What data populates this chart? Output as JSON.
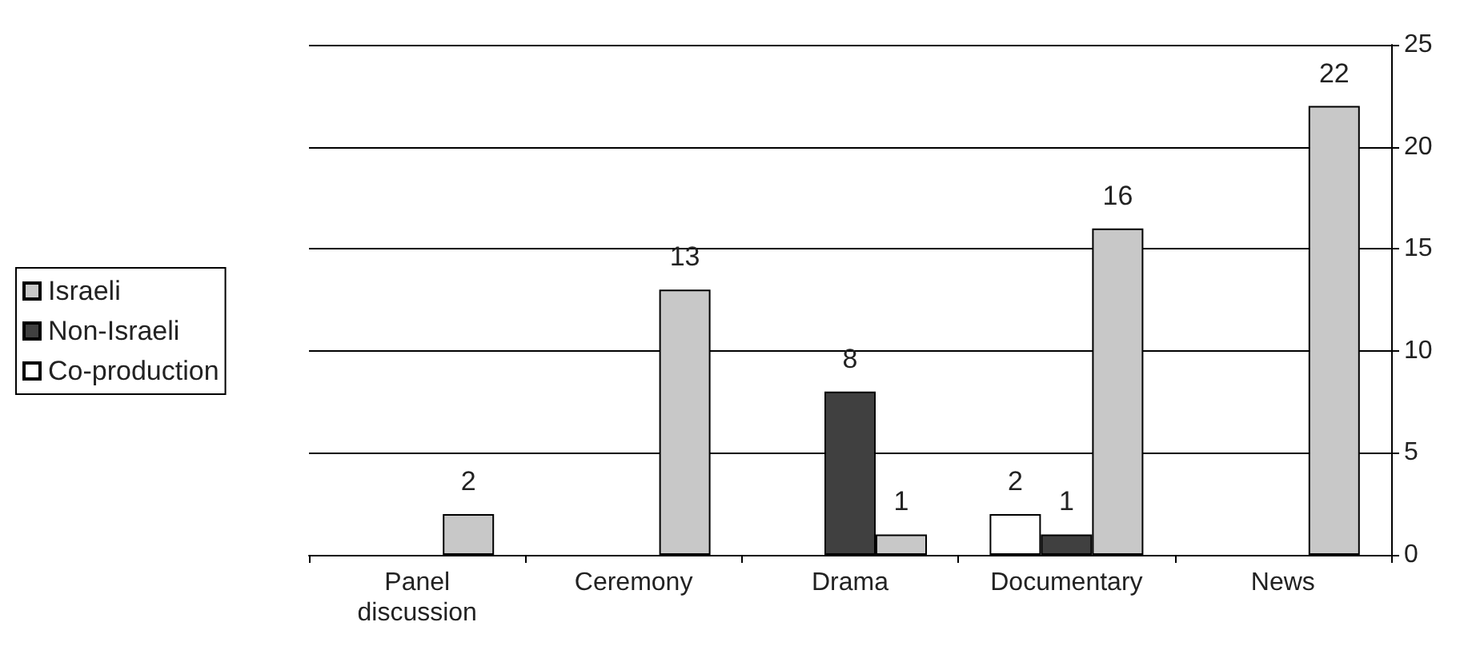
{
  "chart_data": {
    "type": "bar",
    "categories": [
      "Panel discussion",
      "Ceremony",
      "Drama",
      "Documentary",
      "News"
    ],
    "series": [
      {
        "name": "Israeli",
        "color": "#c8c8c8",
        "values": [
          2,
          13,
          1,
          16,
          22
        ]
      },
      {
        "name": "Non-Israeli",
        "color": "#404040",
        "values": [
          null,
          null,
          8,
          1,
          null
        ]
      },
      {
        "name": "Co-production",
        "color": "#ffffff",
        "values": [
          null,
          null,
          null,
          2,
          null
        ]
      }
    ],
    "ylim": [
      0,
      25
    ],
    "yticks": [
      0,
      5,
      10,
      15,
      20,
      25
    ],
    "grid": "y",
    "legend": "left",
    "data_labels": true
  }
}
